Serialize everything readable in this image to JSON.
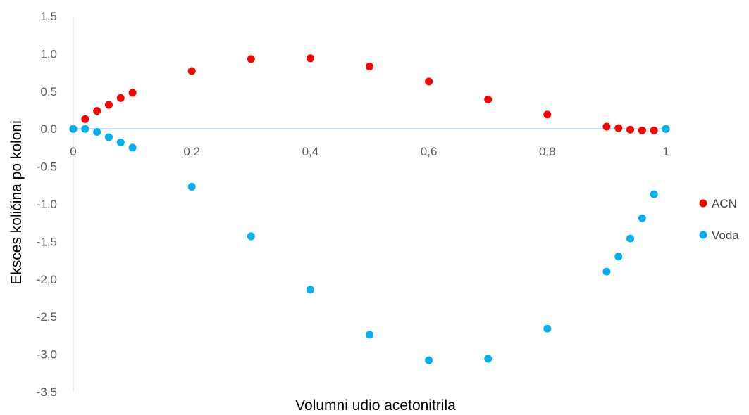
{
  "chart_data": {
    "type": "scatter",
    "xlabel": "Volumni udio acetonitrila",
    "ylabel": "Eksces količina po koloni",
    "xlim": [
      0,
      1
    ],
    "ylim": [
      -3.5,
      1.5
    ],
    "x_ticks": [
      "0",
      "0,2",
      "0,4",
      "0,6",
      "0,8",
      "1"
    ],
    "x_tick_values": [
      0,
      0.2,
      0.4,
      0.6,
      0.8,
      1
    ],
    "y_ticks": [
      "1,5",
      "1,0",
      "0,5",
      "0,0",
      "-0,5",
      "-1,0",
      "-1,5",
      "-2,0",
      "-2,5",
      "-3,0",
      "-3,5"
    ],
    "y_tick_values": [
      1.5,
      1.0,
      0.5,
      0.0,
      -0.5,
      -1.0,
      -1.5,
      -2.0,
      -2.5,
      -3.0,
      -3.5
    ],
    "grid": false,
    "legend_position": "right",
    "zero_line_color": "#4472c4",
    "series": [
      {
        "name": "ACN",
        "color": "#ff0000",
        "points": [
          {
            "x": 0,
            "y": 0.0
          },
          {
            "x": 0.02,
            "y": 0.13
          },
          {
            "x": 0.04,
            "y": 0.24
          },
          {
            "x": 0.06,
            "y": 0.32
          },
          {
            "x": 0.08,
            "y": 0.41
          },
          {
            "x": 0.1,
            "y": 0.48
          },
          {
            "x": 0.2,
            "y": 0.77
          },
          {
            "x": 0.3,
            "y": 0.93
          },
          {
            "x": 0.4,
            "y": 0.94
          },
          {
            "x": 0.5,
            "y": 0.83
          },
          {
            "x": 0.6,
            "y": 0.63
          },
          {
            "x": 0.7,
            "y": 0.39
          },
          {
            "x": 0.8,
            "y": 0.19
          },
          {
            "x": 0.9,
            "y": 0.03
          },
          {
            "x": 0.92,
            "y": 0.01
          },
          {
            "x": 0.94,
            "y": -0.01
          },
          {
            "x": 0.96,
            "y": -0.02
          },
          {
            "x": 0.98,
            "y": -0.02
          },
          {
            "x": 1.0,
            "y": 0.0
          }
        ]
      },
      {
        "name": "Voda",
        "color": "#00b0f0",
        "points": [
          {
            "x": 0,
            "y": 0.0
          },
          {
            "x": 0.02,
            "y": 0.0
          },
          {
            "x": 0.04,
            "y": -0.04
          },
          {
            "x": 0.06,
            "y": -0.11
          },
          {
            "x": 0.08,
            "y": -0.18
          },
          {
            "x": 0.1,
            "y": -0.25
          },
          {
            "x": 0.2,
            "y": -0.77
          },
          {
            "x": 0.3,
            "y": -1.43
          },
          {
            "x": 0.4,
            "y": -2.14
          },
          {
            "x": 0.5,
            "y": -2.74
          },
          {
            "x": 0.6,
            "y": -3.08
          },
          {
            "x": 0.7,
            "y": -3.06
          },
          {
            "x": 0.8,
            "y": -2.66
          },
          {
            "x": 0.9,
            "y": -1.9
          },
          {
            "x": 0.92,
            "y": -1.7
          },
          {
            "x": 0.94,
            "y": -1.46
          },
          {
            "x": 0.96,
            "y": -1.19
          },
          {
            "x": 0.98,
            "y": -0.87
          },
          {
            "x": 1.0,
            "y": 0.0
          }
        ]
      }
    ]
  }
}
